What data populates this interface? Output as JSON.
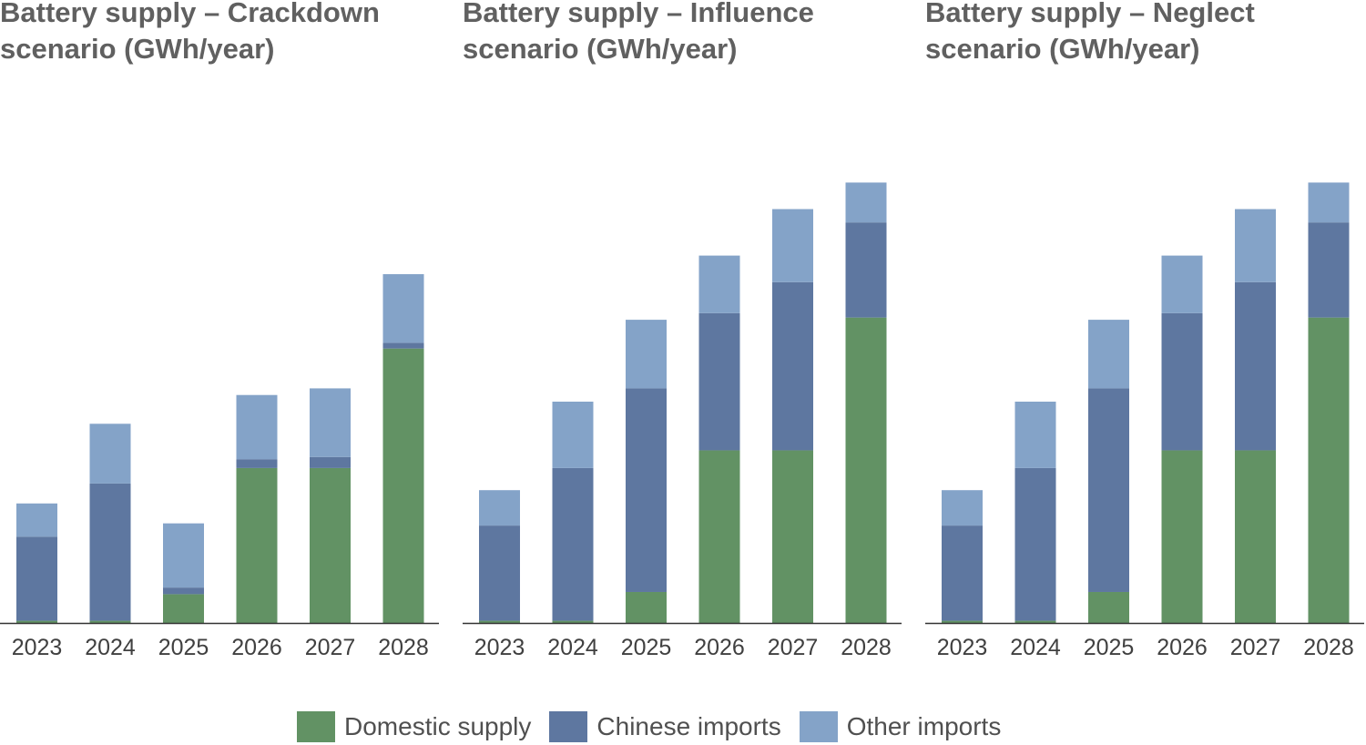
{
  "colors": {
    "domestic": "#629264",
    "chinese": "#5e77a0",
    "other": "#84a3c8",
    "axis": "#333333"
  },
  "legend": [
    {
      "key": "domestic",
      "label": "Domestic supply"
    },
    {
      "key": "chinese",
      "label": "Chinese imports"
    },
    {
      "key": "other",
      "label": "Other imports"
    }
  ],
  "chart_data": [
    {
      "type": "bar",
      "stacked": true,
      "title": "Battery supply – Crackdown\nscenario (GWh/year)",
      "categories": [
        "2023",
        "2024",
        "2025",
        "2026",
        "2027",
        "2028"
      ],
      "ylim": [
        0,
        100
      ],
      "series": [
        {
          "name": "Domestic supply",
          "key": "domestic",
          "values": [
            0.5,
            0.5,
            6.5,
            35,
            35,
            62
          ]
        },
        {
          "name": "Chinese imports",
          "key": "chinese",
          "values": [
            19,
            31,
            1.5,
            2,
            2.5,
            1.3
          ]
        },
        {
          "name": "Other imports",
          "key": "other",
          "values": [
            7.5,
            13.5,
            14.5,
            14.5,
            15.5,
            15.5
          ]
        }
      ]
    },
    {
      "type": "bar",
      "stacked": true,
      "title": "Battery supply – Influence\nscenario (GWh/year)",
      "categories": [
        "2023",
        "2024",
        "2025",
        "2026",
        "2027",
        "2028"
      ],
      "ylim": [
        0,
        100
      ],
      "series": [
        {
          "name": "Domestic supply",
          "key": "domestic",
          "values": [
            0.5,
            0.5,
            7,
            39,
            39,
            69
          ]
        },
        {
          "name": "Chinese imports",
          "key": "chinese",
          "values": [
            21.5,
            34.5,
            46,
            31,
            38,
            21.5
          ]
        },
        {
          "name": "Other imports",
          "key": "other",
          "values": [
            8,
            15,
            15.5,
            13,
            16.5,
            9
          ]
        }
      ]
    },
    {
      "type": "bar",
      "stacked": true,
      "title": "Battery supply – Neglect\nscenario (GWh/year)",
      "categories": [
        "2023",
        "2024",
        "2025",
        "2026",
        "2027",
        "2028"
      ],
      "ylim": [
        0,
        100
      ],
      "series": [
        {
          "name": "Domestic supply",
          "key": "domestic",
          "values": [
            0.5,
            0.5,
            7,
            39,
            39,
            69
          ]
        },
        {
          "name": "Chinese imports",
          "key": "chinese",
          "values": [
            21.5,
            34.5,
            46,
            31,
            38,
            21.5
          ]
        },
        {
          "name": "Other imports",
          "key": "other",
          "values": [
            8,
            15,
            15.5,
            13,
            16.5,
            9
          ]
        }
      ]
    }
  ]
}
